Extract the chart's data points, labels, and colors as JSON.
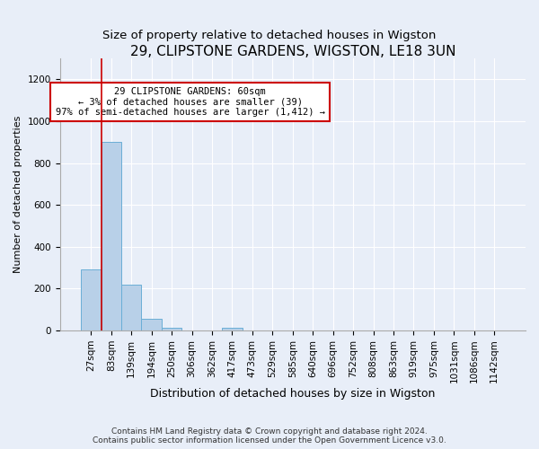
{
  "title": "29, CLIPSTONE GARDENS, WIGSTON, LE18 3UN",
  "subtitle": "Size of property relative to detached houses in Wigston",
  "xlabel": "Distribution of detached houses by size in Wigston",
  "ylabel": "Number of detached properties",
  "categories": [
    "27sqm",
    "83sqm",
    "139sqm",
    "194sqm",
    "250sqm",
    "306sqm",
    "362sqm",
    "417sqm",
    "473sqm",
    "529sqm",
    "585sqm",
    "640sqm",
    "696sqm",
    "752sqm",
    "808sqm",
    "863sqm",
    "919sqm",
    "975sqm",
    "1031sqm",
    "1086sqm",
    "1142sqm"
  ],
  "values": [
    290,
    900,
    220,
    55,
    12,
    0,
    0,
    12,
    0,
    0,
    0,
    0,
    0,
    0,
    0,
    0,
    0,
    0,
    0,
    0,
    0
  ],
  "bar_color": "#b8d0e8",
  "bar_edgecolor": "#6aaed6",
  "annotation_line_color": "#cc0000",
  "annotation_box_edgecolor": "#cc0000",
  "annotation_box_text": "29 CLIPSTONE GARDENS: 60sqm\n← 3% of detached houses are smaller (39)\n97% of semi-detached houses are larger (1,412) →",
  "ylim": [
    0,
    1300
  ],
  "yticks": [
    0,
    200,
    400,
    600,
    800,
    1000,
    1200
  ],
  "footer_line1": "Contains HM Land Registry data © Crown copyright and database right 2024.",
  "footer_line2": "Contains public sector information licensed under the Open Government Licence v3.0.",
  "title_fontsize": 11,
  "subtitle_fontsize": 9.5,
  "xlabel_fontsize": 9,
  "ylabel_fontsize": 8,
  "tick_fontsize": 7.5,
  "footer_fontsize": 6.5,
  "annotation_fontsize": 7.5,
  "background_color": "#e8eef8",
  "plot_bg_color": "#e8eef8",
  "grid_color": "#ffffff"
}
